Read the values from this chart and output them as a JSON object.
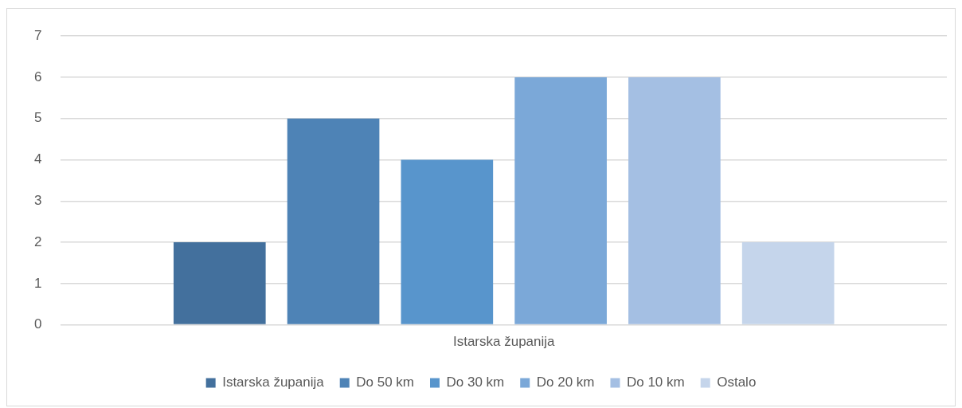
{
  "chart_data": {
    "type": "bar",
    "categories": [
      "Istarska županija"
    ],
    "series": [
      {
        "name": "Istarska županija",
        "color": "#43709d",
        "values": [
          2
        ]
      },
      {
        "name": "Do 50 km",
        "color": "#4e83b6",
        "values": [
          5
        ]
      },
      {
        "name": "Do 30 km",
        "color": "#5895cc",
        "values": [
          4
        ]
      },
      {
        "name": "Do 20 km",
        "color": "#7ba8d8",
        "values": [
          6
        ]
      },
      {
        "name": "Do 10 km",
        "color": "#a4bfe3",
        "values": [
          6
        ]
      },
      {
        "name": "Ostalo",
        "color": "#c5d5eb",
        "values": [
          2
        ]
      }
    ],
    "ylim": [
      0,
      7
    ],
    "yticks": [
      0,
      1,
      2,
      3,
      4,
      5,
      6,
      7
    ],
    "grid": "y",
    "legend": "bottom"
  }
}
